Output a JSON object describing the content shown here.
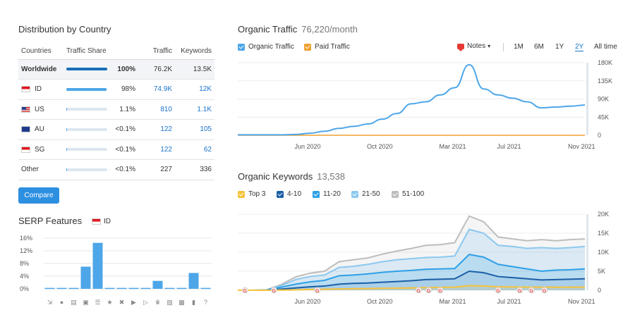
{
  "distribution": {
    "title": "Distribution by Country",
    "headers": [
      "Countries",
      "Traffic Share",
      "Traffic",
      "Keywords"
    ],
    "rows": [
      {
        "country": "Worldwide",
        "flag": "",
        "share_pct": 100,
        "share_label": "100%",
        "traffic": "76.2K",
        "keywords": "13.5K",
        "bar_color": "#1a6fb8"
      },
      {
        "country": "ID",
        "flag": "flag-id",
        "share_pct": 98,
        "share_label": "98%",
        "traffic": "74.9K",
        "keywords": "12K",
        "bar_color": "#4da6e8"
      },
      {
        "country": "US",
        "flag": "flag-us",
        "share_pct": 1.1,
        "share_label": "1.1%",
        "traffic": "810",
        "keywords": "1.1K",
        "bar_color": "#4da6e8"
      },
      {
        "country": "AU",
        "flag": "flag-au",
        "share_pct": 0.1,
        "share_label": "<0.1%",
        "traffic": "122",
        "keywords": "105",
        "bar_color": "#4da6e8"
      },
      {
        "country": "SG",
        "flag": "flag-sg",
        "share_pct": 0.1,
        "share_label": "<0.1%",
        "traffic": "122",
        "keywords": "62",
        "bar_color": "#4da6e8"
      },
      {
        "country": "Other",
        "flag": "",
        "share_pct": 0.1,
        "share_label": "<0.1%",
        "traffic": "227",
        "keywords": "336",
        "bar_color": "#4da6e8"
      }
    ],
    "compare_label": "Compare"
  },
  "serp": {
    "title": "SERP Features",
    "region": "ID",
    "icons": [
      "link-icon",
      "pin-icon",
      "document-icon",
      "image-pack-icon",
      "sitelinks-icon",
      "star-icon",
      "x-icon",
      "video-icon",
      "play-icon",
      "crown-icon",
      "images-icon",
      "carousel-icon",
      "ad-icon",
      "question-icon"
    ]
  },
  "organic_traffic": {
    "title": "Organic Traffic",
    "value": "76,220/month",
    "legend": [
      {
        "label": "Organic Traffic",
        "color": "#4da6e8"
      },
      {
        "label": "Paid Traffic",
        "color": "#f0a030"
      }
    ],
    "notes_label": "Notes",
    "ranges": [
      "1M",
      "6M",
      "1Y",
      "2Y",
      "All time"
    ],
    "active_range": "2Y"
  },
  "organic_keywords": {
    "title": "Organic Keywords",
    "value": "13,538",
    "legend": [
      {
        "label": "Top 3",
        "color": "#f5c33b"
      },
      {
        "label": "4-10",
        "color": "#1a5fa6"
      },
      {
        "label": "11-20",
        "color": "#2ea0e6"
      },
      {
        "label": "21-50",
        "color": "#8cc8f0"
      },
      {
        "label": "51-100",
        "color": "#bdbdbd"
      }
    ]
  },
  "chart_data": [
    {
      "type": "bar",
      "title": "SERP Features",
      "ytick_labels": [
        "0%",
        "4%",
        "8%",
        "12%",
        "16%"
      ],
      "ylim": [
        0,
        16
      ],
      "categories": [
        "link",
        "pin",
        "document",
        "image-pack",
        "sitelinks",
        "star",
        "x",
        "video",
        "play",
        "crown",
        "images",
        "carousel",
        "ad",
        "question"
      ],
      "values": [
        0.3,
        0.3,
        0.3,
        7,
        14.5,
        0.3,
        0.3,
        0.3,
        0.3,
        2.5,
        0.3,
        0.3,
        5,
        0.3
      ],
      "color": "#4da6e8"
    },
    {
      "type": "line",
      "title": "Organic Traffic",
      "ytick_labels": [
        "0",
        "45K",
        "90K",
        "135K",
        "180K"
      ],
      "xtick_labels": [
        "Jun 2020",
        "Oct 2020",
        "Mar 2021",
        "Jul 2021",
        "Nov 2021"
      ],
      "ylim": [
        0,
        180000
      ],
      "xlim": [
        0,
        24
      ],
      "series": [
        {
          "name": "Organic Traffic",
          "color": "#4da6e8",
          "x": [
            0,
            1,
            2,
            3,
            4,
            5,
            6,
            7,
            8,
            9,
            10,
            11,
            12,
            13,
            14,
            15,
            16,
            17,
            18,
            19,
            20,
            21,
            22,
            23,
            24
          ],
          "y": [
            1000,
            1000,
            1000,
            1000,
            2000,
            5000,
            10000,
            17000,
            22000,
            28000,
            40000,
            54000,
            78000,
            83000,
            100000,
            118000,
            175000,
            115000,
            100000,
            92000,
            83000,
            68000,
            70000,
            72000,
            75000
          ]
        },
        {
          "name": "Paid Traffic",
          "color": "#f0a030",
          "x": [
            0,
            24
          ],
          "y": [
            0,
            0
          ]
        }
      ]
    },
    {
      "type": "area",
      "title": "Organic Keywords",
      "ytick_labels": [
        "0",
        "5K",
        "10K",
        "15K",
        "20K"
      ],
      "xtick_labels": [
        "Jun 2020",
        "Oct 2020",
        "Mar 2021",
        "Jul 2021",
        "Nov 2021"
      ],
      "ylim": [
        0,
        20000
      ],
      "xlim": [
        0,
        24
      ],
      "x": [
        0,
        1,
        2,
        3,
        4,
        5,
        6,
        7,
        8,
        9,
        10,
        11,
        12,
        13,
        14,
        15,
        16,
        17,
        18,
        19,
        20,
        21,
        22,
        23,
        24
      ],
      "series": [
        {
          "name": "51-100",
          "color": "#bdbdbd",
          "values": [
            0,
            0,
            100,
            1500,
            3500,
            4500,
            5000,
            7500,
            8000,
            8500,
            9500,
            10300,
            11000,
            11800,
            12000,
            12500,
            19500,
            18000,
            14000,
            13500,
            13000,
            13300,
            13000,
            13300,
            13500
          ]
        },
        {
          "name": "21-50",
          "color": "#8cc8f0",
          "values": [
            0,
            0,
            80,
            1200,
            2800,
            3600,
            4000,
            6000,
            6300,
            6800,
            7500,
            8000,
            8300,
            8600,
            8700,
            9000,
            16000,
            15000,
            11800,
            11500,
            11000,
            11200,
            11000,
            11200,
            11500
          ]
        },
        {
          "name": "11-20",
          "color": "#2ea0e6",
          "values": [
            0,
            0,
            50,
            800,
            1600,
            2200,
            2600,
            3800,
            4000,
            4300,
            4700,
            5000,
            5200,
            5500,
            5600,
            5700,
            9400,
            8700,
            6800,
            6200,
            5600,
            5000,
            5300,
            5400,
            5600
          ]
        },
        {
          "name": "4-10",
          "color": "#1a5fa6",
          "values": [
            0,
            0,
            20,
            300,
            600,
            900,
            1100,
            1600,
            1800,
            1900,
            2100,
            2300,
            2500,
            2800,
            2900,
            3000,
            5000,
            4600,
            3600,
            3300,
            3000,
            2700,
            2800,
            2900,
            3000
          ]
        },
        {
          "name": "Top 3",
          "color": "#f5c33b",
          "values": [
            0,
            0,
            0,
            50,
            100,
            200,
            250,
            350,
            400,
            450,
            500,
            550,
            600,
            700,
            750,
            800,
            1200,
            1100,
            900,
            850,
            800,
            780,
            790,
            800,
            820
          ]
        }
      ],
      "google_markers_x": [
        0.5,
        2.5,
        5.5,
        12.5,
        13.2,
        14,
        18,
        19.5,
        20.3,
        21.2
      ]
    }
  ]
}
